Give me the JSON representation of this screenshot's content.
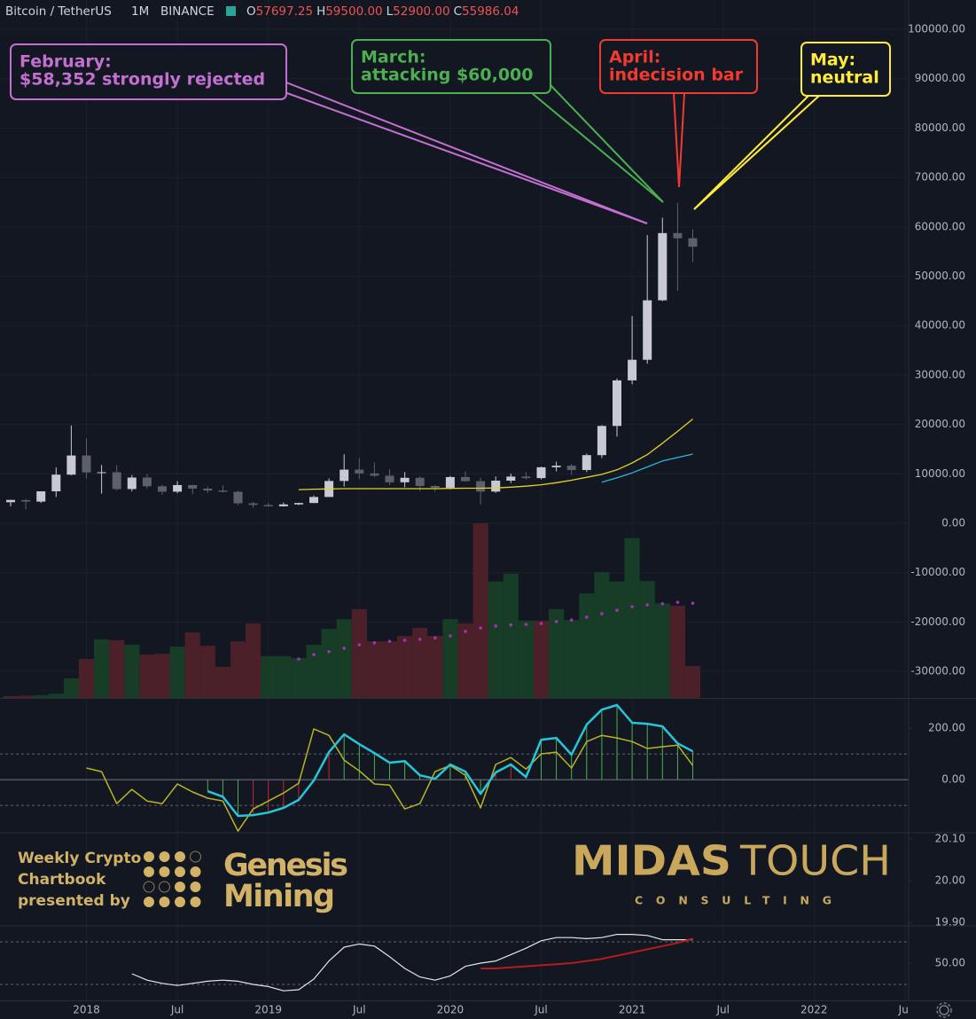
{
  "header": {
    "symbol": "Bitcoin / TetherUS",
    "interval": "1M",
    "exchange": "BINANCE",
    "ohlc": [
      {
        "label": "O",
        "value": "57697.25"
      },
      {
        "label": "H",
        "value": "59500.00"
      },
      {
        "label": "L",
        "value": "52900.00"
      },
      {
        "label": "C",
        "value": "55986.04"
      }
    ]
  },
  "annotations": [
    {
      "lines": [
        "February:",
        "$58,352 strongly rejected"
      ],
      "color": "#c46fd2"
    },
    {
      "lines": [
        "March:",
        "attacking $60,000"
      ],
      "color": "#4caf50"
    },
    {
      "lines": [
        "April:",
        "indecision bar"
      ],
      "color": "#f23b2e"
    },
    {
      "lines": [
        "May:",
        "neutral"
      ],
      "color": "#ffeb3b"
    }
  ],
  "branding": {
    "chartbook": [
      "Weekly Crypto",
      "Chartbook",
      "presented by"
    ],
    "sponsor": [
      "Genesis",
      "Mining"
    ],
    "brand": [
      "MIDAS",
      "TOUCH"
    ],
    "tagline": "CONSULTING"
  },
  "chart_data": [
    {
      "type": "candlestick",
      "x": [
        "2017-08",
        "2017-09",
        "2017-10",
        "2017-11",
        "2017-12",
        "2018-01",
        "2018-02",
        "2018-03",
        "2018-04",
        "2018-05",
        "2018-06",
        "2018-07",
        "2018-08",
        "2018-09",
        "2018-10",
        "2018-11",
        "2018-12",
        "2019-01",
        "2019-02",
        "2019-03",
        "2019-04",
        "2019-05",
        "2019-06",
        "2019-07",
        "2019-08",
        "2019-09",
        "2019-10",
        "2019-11",
        "2019-12",
        "2020-01",
        "2020-02",
        "2020-03",
        "2020-04",
        "2020-05",
        "2020-06",
        "2020-07",
        "2020-08",
        "2020-09",
        "2020-10",
        "2020-11",
        "2020-12",
        "2021-01",
        "2021-02",
        "2021-03",
        "2021-04",
        "2021-05"
      ],
      "open": [
        4261,
        4690,
        4378,
        6463,
        9838,
        13716,
        10285,
        10326,
        6923,
        9246,
        7485,
        6391,
        7735,
        7011,
        6626,
        6370,
        4041,
        3701,
        3434,
        3813,
        4102,
        5321,
        8555,
        10854,
        10085,
        9630,
        8294,
        9198,
        7546,
        7195,
        9351,
        8523,
        6412,
        8620,
        9448,
        9138,
        11335,
        11649,
        10776,
        13791,
        19695,
        28923,
        33092,
        45134,
        58739,
        57697.25
      ],
      "high": [
        4745,
        4939,
        6470,
        11300,
        19798,
        17176,
        11786,
        11710,
        9759,
        10020,
        7786,
        8507,
        7750,
        7410,
        7680,
        6600,
        4313,
        4140,
        4198,
        4140,
        5600,
        9074,
        13970,
        13147,
        12325,
        10905,
        10370,
        9505,
        7750,
        9578,
        10500,
        9188,
        9460,
        10067,
        10380,
        11444,
        12468,
        12050,
        14100,
        19863,
        29300,
        41950,
        58352,
        61844,
        64854,
        59500
      ],
      "low": [
        3400,
        2817,
        4110,
        5325,
        9722,
        9035,
        6000,
        6600,
        6430,
        7032,
        5750,
        6070,
        5880,
        6100,
        6205,
        3652,
        3156,
        3349,
        3373,
        3670,
        4067,
        5350,
        7444,
        9010,
        9320,
        7710,
        7300,
        6515,
        6435,
        6871,
        8445,
        3782,
        6150,
        8117,
        8833,
        8893,
        10518,
        9825,
        10374,
        13195,
        17550,
        28130,
        32296,
        44950,
        47044,
        52900
      ],
      "close": [
        4724,
        4378,
        6463,
        9838,
        13716,
        10285,
        10326,
        6923,
        9246,
        7485,
        6390,
        7730,
        7011,
        6626,
        6371,
        4041,
        3702,
        3434,
        3813,
        4103,
        5320,
        8555,
        10855,
        10085,
        9630,
        8293,
        9199,
        7546,
        7195,
        9352,
        8523,
        6410,
        8620,
        9448,
        9138,
        11335,
        11649,
        10776,
        13791,
        19695,
        28923,
        33092,
        45135,
        58740,
        57694,
        55986.04
      ],
      "up_color": "#c8c9d2",
      "down_color": "#5d606b",
      "ylim": [
        -35370,
        105930
      ],
      "yticks": [
        {
          "value": -30000,
          "label": "-30000.00"
        },
        {
          "value": -20000,
          "label": "-20000.00"
        },
        {
          "value": -10000,
          "label": "-10000.00"
        },
        {
          "value": 0,
          "label": "0.00"
        },
        {
          "value": 10000,
          "label": "10000.00"
        },
        {
          "value": 20000,
          "label": "20000.00"
        },
        {
          "value": 30000,
          "label": "30000.00"
        },
        {
          "value": 40000,
          "label": "40000.00"
        },
        {
          "value": 50000,
          "label": "50000.00"
        },
        {
          "value": 60000,
          "label": "60000.00"
        },
        {
          "value": 70000,
          "label": "70000.00"
        },
        {
          "value": 80000,
          "label": "80000.00"
        },
        {
          "value": 90000,
          "label": "90000.00"
        },
        {
          "value": 100000,
          "label": "100000.00"
        }
      ],
      "xticks": [
        {
          "value": "2018-01",
          "label": "2018"
        },
        {
          "value": "2018-07",
          "label": "Jul"
        },
        {
          "value": "2019-01",
          "label": "2019"
        },
        {
          "value": "2019-07",
          "label": "Jul"
        },
        {
          "value": "2020-01",
          "label": "2020"
        },
        {
          "value": "2020-07",
          "label": "Jul"
        },
        {
          "value": "2021-01",
          "label": "2021"
        },
        {
          "value": "2021-07",
          "label": "Jul"
        },
        {
          "value": "2022-01",
          "label": "2022"
        },
        {
          "value": "2022-07",
          "label": "Jul"
        }
      ],
      "grid": true,
      "series": [
        {
          "color": "#e2d12b",
          "values": [
            null,
            null,
            null,
            null,
            null,
            null,
            null,
            null,
            null,
            null,
            null,
            null,
            null,
            null,
            null,
            null,
            null,
            null,
            null,
            6800,
            6900,
            6950,
            7000,
            7000,
            7000,
            7000,
            7000,
            7000,
            7000,
            7050,
            7100,
            7100,
            7150,
            7300,
            7500,
            7800,
            8200,
            8700,
            9300,
            9900,
            10800,
            12200,
            13900,
            16200,
            18600,
            21100
          ]
        },
        {
          "color": "#29b6d9",
          "values": [
            null,
            null,
            null,
            null,
            null,
            null,
            null,
            null,
            null,
            null,
            null,
            null,
            null,
            null,
            null,
            null,
            null,
            null,
            null,
            null,
            null,
            null,
            null,
            null,
            null,
            null,
            null,
            null,
            null,
            null,
            null,
            null,
            null,
            null,
            null,
            null,
            null,
            null,
            null,
            8300,
            9200,
            10200,
            11400,
            12600,
            13300,
            14000
          ]
        }
      ],
      "bars": {
        "values": [
          -35000,
          -34900,
          -34800,
          -34500,
          -31400,
          -27500,
          -23500,
          -23700,
          -24600,
          -26600,
          -26400,
          -25000,
          -22100,
          -24800,
          -29100,
          -23900,
          -20300,
          -26900,
          -26900,
          -27300,
          -24600,
          -21400,
          -19400,
          -17400,
          -23900,
          -23900,
          -22800,
          -21200,
          -22800,
          -19400,
          -20300,
          0,
          -11800,
          -10200,
          -19700,
          -19700,
          -17400,
          -19600,
          -14200,
          -9900,
          -11800,
          -3000,
          -11700,
          -16200,
          -16700,
          -28900
        ],
        "colors": [
          "#4b2029",
          "#4b2029",
          "#173d27",
          "#173d27",
          "#173d27",
          "#4b2029",
          "#173d27",
          "#4b2029",
          "#173d27",
          "#4b2029",
          "#4b2029",
          "#173d27",
          "#4b2029",
          "#4b2029",
          "#4b2029",
          "#4b2029",
          "#4b2029",
          "#173d27",
          "#173d27",
          "#173d27",
          "#173d27",
          "#173d27",
          "#173d27",
          "#4b2029",
          "#4b2029",
          "#4b2029",
          "#4b2029",
          "#4b2029",
          "#4b2029",
          "#173d27",
          "#4b2029",
          "#4b2029",
          "#173d27",
          "#173d27",
          "#173d27",
          "#4b2029",
          "#173d27",
          "#173d27",
          "#173d27",
          "#173d27",
          "#173d27",
          "#173d27",
          "#173d27",
          "#173d27",
          "#4b2029",
          "#4b2029"
        ]
      },
      "dots": {
        "color": "#a52fb5",
        "values": [
          null,
          null,
          null,
          null,
          null,
          null,
          null,
          null,
          null,
          null,
          null,
          null,
          null,
          null,
          null,
          null,
          null,
          null,
          null,
          -27500,
          -26600,
          -26000,
          -25300,
          -24600,
          -24200,
          -23900,
          -23700,
          -23500,
          -23200,
          -22800,
          -21900,
          -21200,
          -20800,
          -20600,
          -20500,
          -20300,
          -19900,
          -19600,
          -19000,
          -18300,
          -17600,
          -16900,
          -16500,
          -16300,
          -16000,
          -16200
        ]
      }
    },
    {
      "type": "line",
      "ylim": [
        -203,
        314
      ],
      "yticks": [
        {
          "value": 0,
          "label": "0.00"
        },
        {
          "value": 200,
          "label": "200.00"
        }
      ],
      "levels": [
        100,
        -100
      ],
      "series": [
        {
          "color": "#b9b424",
          "width": 1.5,
          "values": [
            null,
            null,
            null,
            null,
            null,
            45,
            31,
            -93,
            -38,
            -83,
            -93,
            -17,
            -48,
            -72,
            -83,
            -200,
            -114,
            -83,
            -52,
            -14,
            197,
            172,
            76,
            34,
            -17,
            -21,
            -114,
            -93,
            31,
            55,
            17,
            -110,
            59,
            86,
            41,
            100,
            107,
            45,
            148,
            172,
            162,
            148,
            121,
            128,
            134,
            55
          ]
        },
        {
          "color": "#26c6da",
          "width": 2.5,
          "histogram": [
            "#4caf50",
            "#c62828"
          ],
          "values": [
            null,
            null,
            null,
            null,
            null,
            null,
            null,
            null,
            null,
            null,
            null,
            null,
            null,
            -45,
            -66,
            -141,
            -138,
            -128,
            -110,
            -79,
            -3,
            107,
            176,
            138,
            103,
            66,
            72,
            17,
            3,
            59,
            31,
            -55,
            28,
            59,
            10,
            155,
            162,
            97,
            214,
            272,
            290,
            221,
            217,
            207,
            141,
            110
          ]
        }
      ]
    },
    {
      "type": "blank",
      "ylim": [
        19.894,
        20.113
      ],
      "yticks": [
        {
          "value": 19.9,
          "label": "19.90"
        },
        {
          "value": 20,
          "label": "20.00"
        },
        {
          "value": 20.1,
          "label": "20.10"
        }
      ]
    },
    {
      "type": "line",
      "ylim": [
        15,
        84.2
      ],
      "yticks": [
        {
          "value": 50,
          "label": "50.00"
        }
      ],
      "levels": [
        70,
        30
      ],
      "series": [
        {
          "color": "#e6e6e6",
          "width": 1.2,
          "values": [
            null,
            null,
            null,
            null,
            null,
            null,
            null,
            null,
            40,
            34,
            31,
            29,
            31,
            33,
            34,
            33,
            30,
            28,
            24,
            25,
            35,
            52,
            65,
            68,
            66,
            56,
            45,
            37,
            34,
            38,
            47,
            50,
            52,
            58,
            64,
            71,
            74,
            74,
            73,
            74,
            77,
            77,
            76,
            72,
            72,
            72
          ]
        },
        {
          "color": "#b71c1c",
          "width": 2,
          "values": [
            null,
            null,
            null,
            null,
            null,
            null,
            null,
            null,
            null,
            null,
            null,
            null,
            null,
            null,
            null,
            null,
            null,
            null,
            null,
            null,
            null,
            null,
            null,
            null,
            null,
            null,
            null,
            null,
            null,
            null,
            null,
            45,
            45,
            46,
            47,
            48,
            49,
            50,
            52,
            54,
            57,
            60,
            63,
            66,
            69,
            73
          ]
        }
      ]
    }
  ]
}
